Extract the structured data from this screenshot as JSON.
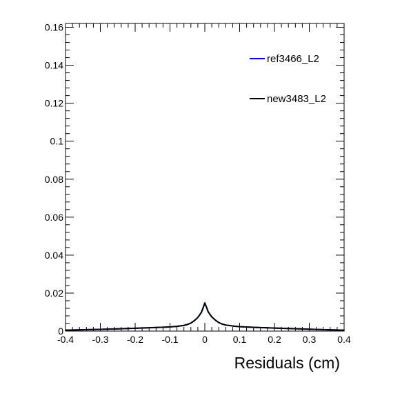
{
  "chart_data": {
    "type": "line",
    "title": "",
    "xlabel": "Residuals (cm)",
    "ylabel": "",
    "xlim": [
      -0.4,
      0.4
    ],
    "ylim": [
      0,
      0.162
    ],
    "grid": false,
    "legend_position": "top-right",
    "x_tick_labels": [
      "-0.4",
      "-0.3",
      "-0.2",
      "-0.1",
      "0",
      "0.1",
      "0.2",
      "0.3",
      "0.4"
    ],
    "y_tick_labels": [
      "0",
      "0.02",
      "0.04",
      "0.06",
      "0.08",
      "0.1",
      "0.12",
      "0.14",
      "0.16"
    ],
    "x": [
      -0.4,
      -0.35,
      -0.3,
      -0.25,
      -0.2,
      -0.15,
      -0.1,
      -0.08,
      -0.06,
      -0.05,
      -0.04,
      -0.03,
      -0.02,
      -0.01,
      -0.005,
      0,
      0.005,
      0.01,
      0.02,
      0.03,
      0.04,
      0.05,
      0.06,
      0.08,
      0.1,
      0.15,
      0.2,
      0.25,
      0.3,
      0.35,
      0.4
    ],
    "series": [
      {
        "name": "ref3466_L2",
        "color": "#0000ff",
        "values": [
          0.0005,
          0.0007,
          0.0009,
          0.0012,
          0.0015,
          0.0018,
          0.0022,
          0.0025,
          0.003,
          0.0035,
          0.0042,
          0.0055,
          0.0072,
          0.0098,
          0.0122,
          0.0148,
          0.0125,
          0.01,
          0.0075,
          0.0058,
          0.0045,
          0.0037,
          0.0032,
          0.0027,
          0.0023,
          0.0019,
          0.0016,
          0.0013,
          0.001,
          0.0007,
          0.0005
        ]
      },
      {
        "name": "new3483_L2",
        "color": "#000000",
        "values": [
          0.0005,
          0.0007,
          0.0009,
          0.0012,
          0.0015,
          0.0018,
          0.0022,
          0.0025,
          0.003,
          0.0035,
          0.0042,
          0.0055,
          0.0072,
          0.0098,
          0.0122,
          0.0148,
          0.0125,
          0.01,
          0.0075,
          0.0058,
          0.0045,
          0.0037,
          0.0032,
          0.0027,
          0.0023,
          0.0019,
          0.0016,
          0.0013,
          0.001,
          0.0007,
          0.0005
        ]
      }
    ]
  }
}
